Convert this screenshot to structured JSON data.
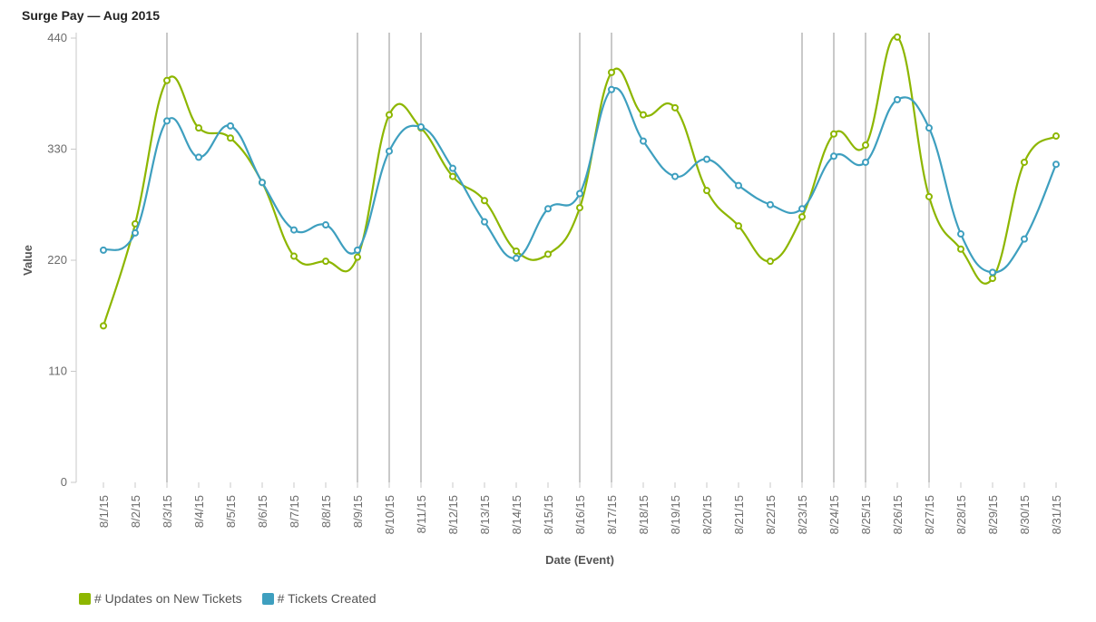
{
  "chart_data": {
    "type": "line",
    "title": "Surge Pay — Aug 2015",
    "xlabel": "Date (Event)",
    "ylabel": "Value",
    "ylim": [
      0,
      440
    ],
    "yticks": [
      0,
      110,
      220,
      330,
      440
    ],
    "categories": [
      "8/1/15",
      "8/2/15",
      "8/3/15",
      "8/4/15",
      "8/5/15",
      "8/6/15",
      "8/7/15",
      "8/8/15",
      "8/9/15",
      "8/10/15",
      "8/11/15",
      "8/12/15",
      "8/13/15",
      "8/14/15",
      "8/15/15",
      "8/16/15",
      "8/17/15",
      "8/18/15",
      "8/19/15",
      "8/20/15",
      "8/21/15",
      "8/22/15",
      "8/23/15",
      "8/24/15",
      "8/25/15",
      "8/26/15",
      "8/27/15",
      "8/28/15",
      "8/29/15",
      "8/30/15",
      "8/31/15"
    ],
    "event_markers": [
      "8/3/15",
      "8/9/15",
      "8/10/15",
      "8/11/15",
      "8/16/15",
      "8/17/15",
      "8/23/15",
      "8/24/15",
      "8/25/15",
      "8/27/15"
    ],
    "series": [
      {
        "name": "# Updates on New Tickets",
        "color": "#8db600",
        "values": [
          155,
          256,
          398,
          351,
          341,
          297,
          224,
          219,
          223,
          364,
          351,
          303,
          279,
          229,
          226,
          272,
          406,
          364,
          371,
          289,
          254,
          219,
          263,
          345,
          334,
          441,
          283,
          231,
          202,
          317,
          343
        ]
      },
      {
        "name": "# Tickets Created",
        "color": "#3e9fbf",
        "values": [
          230,
          247,
          358,
          322,
          353,
          297,
          250,
          255,
          230,
          328,
          352,
          311,
          258,
          222,
          271,
          286,
          389,
          338,
          303,
          320,
          294,
          275,
          271,
          323,
          317,
          379,
          351,
          246,
          208,
          241,
          315
        ]
      }
    ]
  }
}
